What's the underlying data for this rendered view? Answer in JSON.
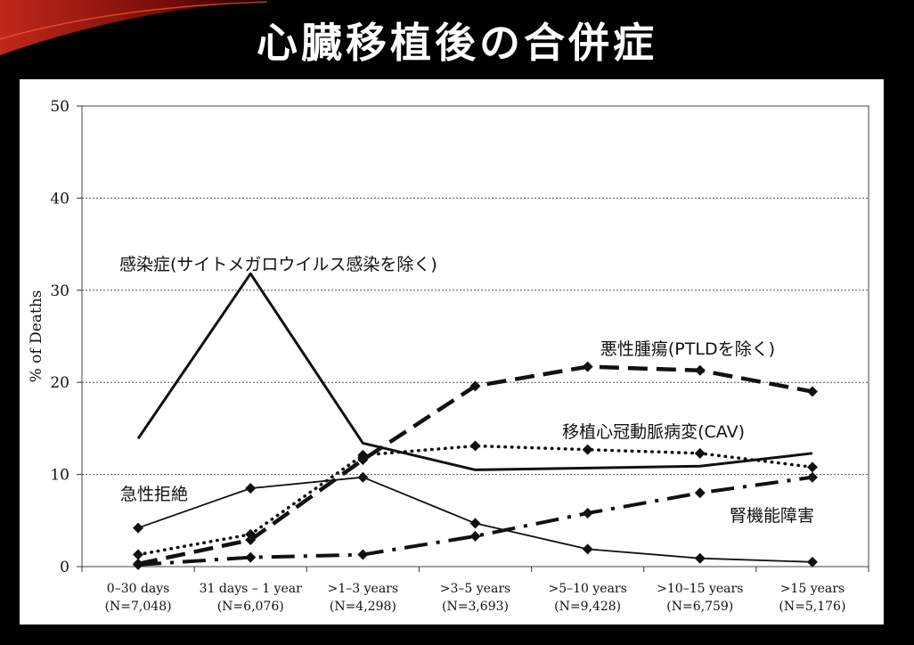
{
  "slide_title": "心臓移植後の合併症",
  "chart_data": {
    "type": "line",
    "title": "",
    "ylabel": "% of Deaths",
    "xlabel": "",
    "ylim": [
      0,
      50
    ],
    "yticks": [
      0,
      10,
      20,
      30,
      40,
      50
    ],
    "grid": true,
    "categories": [
      {
        "label": "0–30 days",
        "n": "(N=7,048)"
      },
      {
        "label": "31 days – 1 year",
        "n": "(N=6,076)"
      },
      {
        "label": ">1–3 years",
        "n": "(N=4,298)"
      },
      {
        "label": ">3–5 years",
        "n": "(N=3,693)"
      },
      {
        "label": ">5–10 years",
        "n": "(N=9,428)"
      },
      {
        "label": ">10–15 years",
        "n": "(N=6,759)"
      },
      {
        "label": ">15 years",
        "n": "(N=5,176)"
      }
    ],
    "series": [
      {
        "name": "感染症(サイトメガロウイルス感染を除く)",
        "style": "solid-thick",
        "marker": "none",
        "values": [
          13.9,
          31.8,
          13.4,
          10.5,
          10.7,
          10.9,
          12.3
        ]
      },
      {
        "name": "急性拒絶",
        "style": "solid-thin",
        "marker": "diamond",
        "values": [
          4.2,
          8.5,
          9.7,
          4.7,
          1.9,
          0.9,
          0.5
        ]
      },
      {
        "name": "悪性腫瘍(PTLDを除く)",
        "style": "dashed",
        "marker": "diamond",
        "values": [
          0.3,
          2.9,
          11.6,
          19.6,
          21.7,
          21.3,
          19.0
        ]
      },
      {
        "name": "移植心冠動脈病変(CAV)",
        "style": "dotted",
        "marker": "diamond",
        "values": [
          1.3,
          3.5,
          12.1,
          13.1,
          12.7,
          12.3,
          10.8
        ]
      },
      {
        "name": "腎機能障害",
        "style": "dash-dot",
        "marker": "diamond",
        "values": [
          0.2,
          1.0,
          1.3,
          3.3,
          5.8,
          8.0,
          9.7
        ]
      }
    ]
  }
}
